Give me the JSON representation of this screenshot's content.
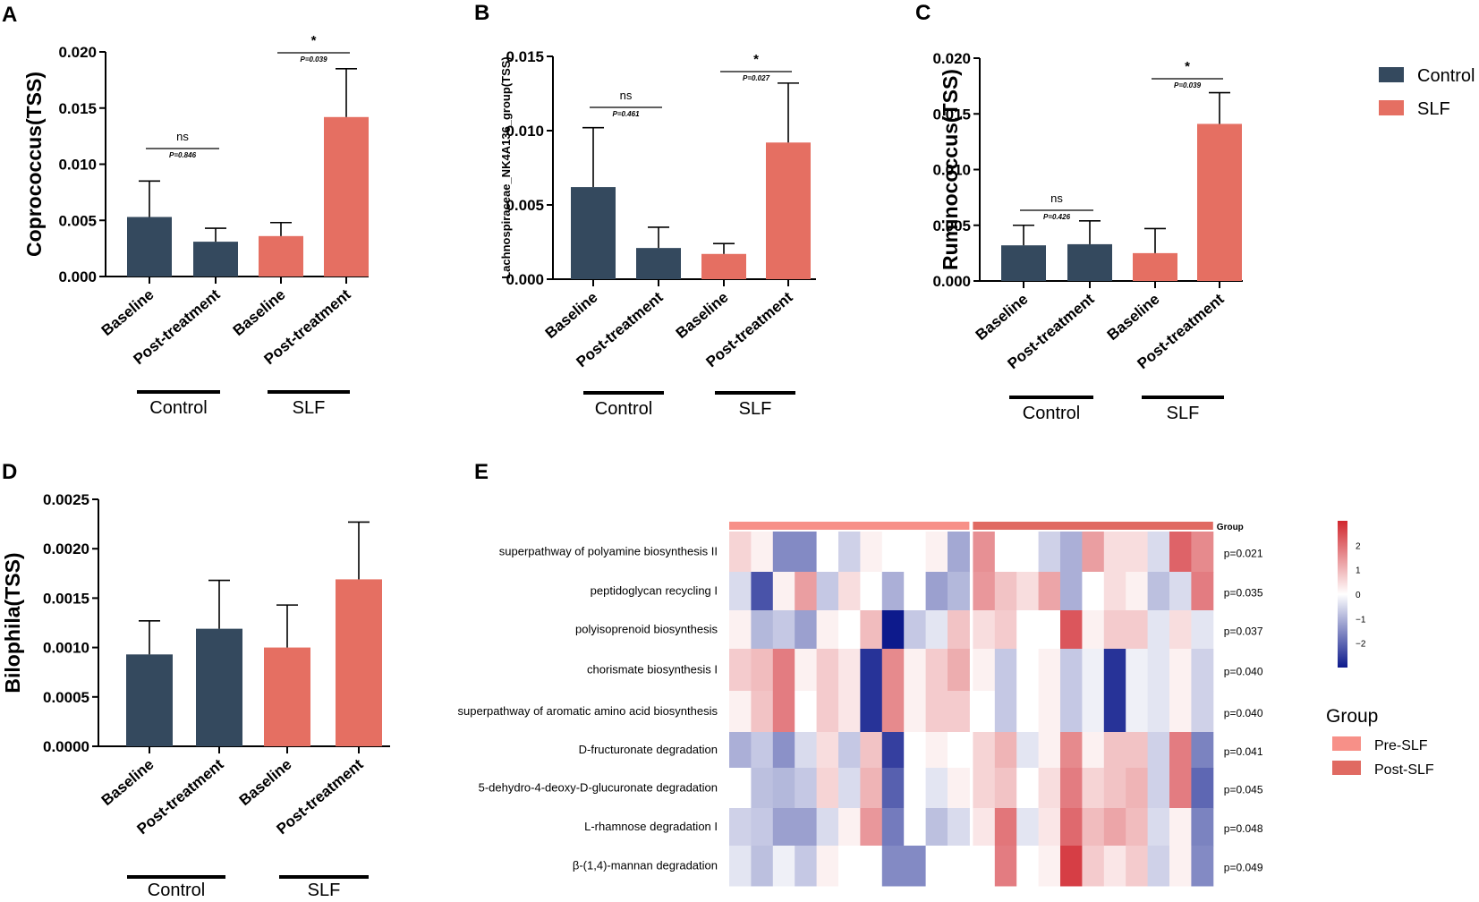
{
  "colors": {
    "control": "#34495e",
    "slf": "#e56f62",
    "pre_slf": "#f79088",
    "post_slf": "#e06a62",
    "low": "#0d1a8c",
    "mid": "#ffffff",
    "high": "#d1272e"
  },
  "legend": {
    "control": "Control",
    "slf": "SLF"
  },
  "chart_data": [
    {
      "type": "bar",
      "panel": "A",
      "categories": [
        "Baseline",
        "Post-treatment",
        "Baseline",
        "Post-treatment"
      ],
      "groups": [
        "Control",
        "SLF"
      ],
      "values": [
        0.0053,
        0.0031,
        0.0036,
        0.0142
      ],
      "errors": [
        0.0032,
        0.0012,
        0.0012,
        0.0043
      ],
      "ylabel": "Coprococcus(TSS)",
      "ylim": [
        0,
        0.02
      ],
      "yticks": [
        "0.000",
        "0.005",
        "0.010",
        "0.015",
        "0.020"
      ],
      "comparisons": [
        {
          "group": 0,
          "label": "ns",
          "p": "P=0.846"
        },
        {
          "group": 1,
          "label": "*",
          "p": "P=0.039"
        }
      ]
    },
    {
      "type": "bar",
      "panel": "B",
      "categories": [
        "Baseline",
        "Post-treatment",
        "Baseline",
        "Post-treatment"
      ],
      "groups": [
        "Control",
        "SLF"
      ],
      "values": [
        0.0062,
        0.0021,
        0.0017,
        0.0092
      ],
      "errors": [
        0.004,
        0.0014,
        0.0007,
        0.004
      ],
      "ylabel": "Lachnospiraceae_NK4A136_group(TSS)",
      "ylim": [
        0,
        0.015
      ],
      "yticks": [
        "0.000",
        "0.005",
        "0.010",
        "0.015"
      ],
      "comparisons": [
        {
          "group": 0,
          "label": "ns",
          "p": "P=0.461"
        },
        {
          "group": 1,
          "label": "*",
          "p": "P=0.027"
        }
      ]
    },
    {
      "type": "bar",
      "panel": "C",
      "categories": [
        "Baseline",
        "Post-treatment",
        "Baseline",
        "Post-treatment"
      ],
      "groups": [
        "Control",
        "SLF"
      ],
      "values": [
        0.0032,
        0.0033,
        0.0025,
        0.0141
      ],
      "errors": [
        0.0018,
        0.0021,
        0.0022,
        0.0028
      ],
      "ylabel": "Ruminococcus(TSS)",
      "ylim": [
        0,
        0.02
      ],
      "yticks": [
        "0.000",
        "0.005",
        "0.010",
        "0.015",
        "0.020"
      ],
      "comparisons": [
        {
          "group": 0,
          "label": "ns",
          "p": "P=0.426"
        },
        {
          "group": 1,
          "label": "*",
          "p": "P=0.039"
        }
      ]
    },
    {
      "type": "bar",
      "panel": "D",
      "categories": [
        "Baseline",
        "Post-treatment",
        "Baseline",
        "Post-treatment"
      ],
      "groups": [
        "Control",
        "SLF"
      ],
      "values": [
        0.00093,
        0.00119,
        0.001,
        0.00169
      ],
      "errors": [
        0.00034,
        0.00049,
        0.00043,
        0.00058
      ],
      "ylabel": "Bilophila(TSS)",
      "ylim": [
        0,
        0.0025
      ],
      "yticks": [
        "0.0000",
        "0.0005",
        "0.0010",
        "0.0015",
        "0.0020",
        "0.0025"
      ],
      "comparisons": []
    },
    {
      "type": "heatmap",
      "panel": "E",
      "rows": [
        "superpathway of polyamine biosynthesis II",
        "peptidoglycan recycling I",
        "polyisoprenoid biosynthesis",
        "chorismate biosynthesis I",
        "superpathway of aromatic amino acid biosynthesis",
        "D-fructuronate degradation",
        "5-dehydro-4-deoxy-D-glucuronate degradation",
        "L-rhamnose degradation I",
        "β-(1,4)-mannan degradation"
      ],
      "p_values": [
        "p=0.021",
        "p=0.035",
        "p=0.037",
        "p=0.040",
        "p=0.040",
        "p=0.041",
        "p=0.045",
        "p=0.048",
        "p=0.049"
      ],
      "column_groups": [
        "Pre-SLF",
        "Post-SLF"
      ],
      "group_label": "Group",
      "scale_ticks": [
        "2",
        "1",
        "0",
        "−1",
        "−2"
      ],
      "scale_range": [
        -3,
        3
      ],
      "values": [
        [
          0.4,
          0.1,
          -1.3,
          -1.3,
          0.0,
          -0.4,
          0.1,
          0.0,
          0.0,
          0.1,
          -0.9,
          1.3,
          0.0,
          0.0,
          -0.4,
          -0.8,
          1.1,
          0.3,
          0.3,
          -0.3,
          2.0,
          1.4
        ],
        [
          -0.3,
          -2.1,
          0.1,
          1.1,
          -0.5,
          0.3,
          0.0,
          -0.8,
          0.0,
          -1.0,
          -0.7,
          1.2,
          0.6,
          0.3,
          1.0,
          -0.8,
          0.0,
          0.3,
          0.1,
          -0.6,
          -0.3,
          1.6
        ],
        [
          0.1,
          -0.7,
          -0.5,
          -1.0,
          0.1,
          0.0,
          0.7,
          -3.0,
          -0.5,
          -0.2,
          0.6,
          0.3,
          0.5,
          0.0,
          0.0,
          2.2,
          0.1,
          0.5,
          0.5,
          -0.2,
          0.3,
          -0.2
        ],
        [
          0.5,
          0.7,
          1.6,
          0.1,
          0.5,
          0.2,
          -2.6,
          1.4,
          0.1,
          0.5,
          0.9,
          0.1,
          -0.5,
          0.0,
          0.1,
          -0.5,
          -0.1,
          -2.6,
          -0.1,
          -0.2,
          0.1,
          -0.4
        ],
        [
          0.1,
          0.6,
          1.6,
          0.0,
          0.5,
          0.2,
          -2.6,
          1.4,
          0.1,
          0.5,
          0.5,
          0.0,
          -0.5,
          0.0,
          0.1,
          -0.5,
          -0.1,
          -2.6,
          -0.1,
          -0.2,
          0.1,
          -0.4
        ],
        [
          -0.8,
          -0.5,
          -1.2,
          -0.3,
          0.3,
          -0.5,
          0.6,
          -2.4,
          0.0,
          0.1,
          0.0,
          0.4,
          0.8,
          -0.2,
          0.1,
          1.4,
          0.1,
          0.6,
          0.6,
          -0.4,
          1.6,
          -1.4
        ],
        [
          0.0,
          -0.6,
          -0.7,
          -0.5,
          0.4,
          -0.3,
          0.8,
          -1.9,
          0.0,
          -0.2,
          0.1,
          0.4,
          0.6,
          0.0,
          0.3,
          1.6,
          0.4,
          0.6,
          0.8,
          -0.4,
          1.6,
          -1.8
        ],
        [
          -0.4,
          -0.5,
          -1.0,
          -1.0,
          -0.3,
          0.1,
          1.2,
          -1.5,
          0.0,
          -0.6,
          -0.3,
          0.2,
          1.7,
          -0.2,
          0.2,
          1.9,
          0.7,
          1.0,
          0.7,
          -0.3,
          0.1,
          -1.4
        ],
        [
          -0.2,
          -0.6,
          -0.1,
          -0.5,
          0.1,
          0.0,
          0.0,
          -1.3,
          -1.3,
          0.0,
          0.0,
          0.0,
          1.6,
          0.0,
          0.1,
          2.6,
          0.5,
          0.2,
          0.5,
          -0.4,
          0.1,
          -1.3
        ]
      ]
    }
  ]
}
